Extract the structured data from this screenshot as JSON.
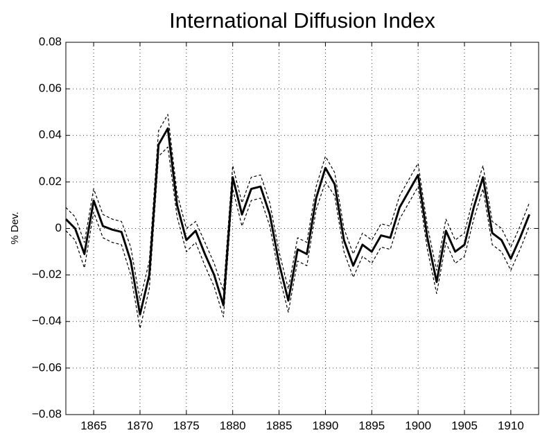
{
  "chart_data": {
    "type": "line",
    "title": "International Diffusion Index",
    "y_label": "% Dev.",
    "x": [
      1862,
      1863,
      1864,
      1865,
      1866,
      1867,
      1868,
      1869,
      1870,
      1871,
      1872,
      1873,
      1874,
      1875,
      1876,
      1877,
      1878,
      1879,
      1880,
      1881,
      1882,
      1883,
      1884,
      1885,
      1886,
      1887,
      1888,
      1889,
      1890,
      1891,
      1892,
      1893,
      1894,
      1895,
      1896,
      1897,
      1898,
      1899,
      1900,
      1901,
      1902,
      1903,
      1904,
      1905,
      1906,
      1907,
      1908,
      1909,
      1910,
      1911,
      1912
    ],
    "series": [
      {
        "color": "#000000",
        "dashed": false,
        "width": 3,
        "values": [
          0.004,
          0.0,
          -0.011,
          0.012,
          0.001,
          -0.0005,
          -0.0015,
          -0.014,
          -0.037,
          -0.02,
          0.036,
          0.043,
          0.01,
          -0.005,
          -0.001,
          -0.011,
          -0.02,
          -0.033,
          0.022,
          0.006,
          0.017,
          0.018,
          0.006,
          -0.015,
          -0.031,
          -0.009,
          -0.011,
          0.013,
          0.026,
          0.019,
          -0.005,
          -0.016,
          -0.007,
          -0.01,
          -0.003,
          -0.004,
          0.009,
          0.016,
          0.023,
          -0.004,
          -0.023,
          -0.001,
          -0.01,
          -0.007,
          0.009,
          0.022,
          -0.002,
          -0.005,
          -0.013,
          -0.004,
          0.006
        ]
      },
      {
        "color": "#000000",
        "dashed": true,
        "width": 1.2,
        "values": [
          0.009,
          0.005,
          -0.006,
          0.017,
          0.006,
          0.004,
          0.003,
          -0.008,
          -0.031,
          -0.014,
          0.042,
          0.049,
          0.015,
          0.0,
          0.003,
          -0.006,
          -0.015,
          -0.027,
          0.027,
          0.011,
          0.022,
          0.023,
          0.011,
          -0.01,
          -0.026,
          -0.004,
          -0.006,
          0.018,
          0.031,
          0.024,
          0.0,
          -0.011,
          -0.002,
          -0.005,
          0.002,
          0.001,
          0.014,
          0.021,
          0.028,
          0.001,
          -0.018,
          0.004,
          -0.005,
          -0.002,
          0.014,
          0.027,
          0.003,
          0.0,
          -0.008,
          0.001,
          0.011
        ]
      },
      {
        "color": "#000000",
        "dashed": true,
        "width": 1.2,
        "values": [
          -0.001,
          -0.005,
          -0.017,
          0.007,
          -0.004,
          -0.006,
          -0.007,
          -0.02,
          -0.043,
          -0.026,
          0.031,
          0.035,
          0.005,
          -0.01,
          -0.006,
          -0.016,
          -0.025,
          -0.038,
          0.017,
          0.001,
          0.012,
          0.013,
          0.001,
          -0.02,
          -0.036,
          -0.014,
          -0.016,
          0.008,
          0.02,
          0.014,
          -0.01,
          -0.021,
          -0.012,
          -0.015,
          -0.008,
          -0.009,
          0.004,
          0.011,
          0.018,
          -0.009,
          -0.028,
          -0.006,
          -0.015,
          -0.012,
          0.004,
          0.017,
          -0.007,
          -0.01,
          -0.018,
          -0.009,
          0.001
        ]
      }
    ],
    "xlim": [
      1862,
      1913
    ],
    "ylim": [
      -0.08,
      0.08
    ],
    "xticks": [
      1865,
      1870,
      1875,
      1880,
      1885,
      1890,
      1895,
      1900,
      1905,
      1910
    ],
    "yticks": [
      {
        "value": -0.08,
        "label": "−0.08"
      },
      {
        "value": -0.06,
        "label": "−0.06"
      },
      {
        "value": -0.04,
        "label": "−0.04"
      },
      {
        "value": -0.02,
        "label": "−0.02"
      },
      0,
      0.02,
      0.04,
      0.06,
      0.08
    ],
    "grid": true
  }
}
